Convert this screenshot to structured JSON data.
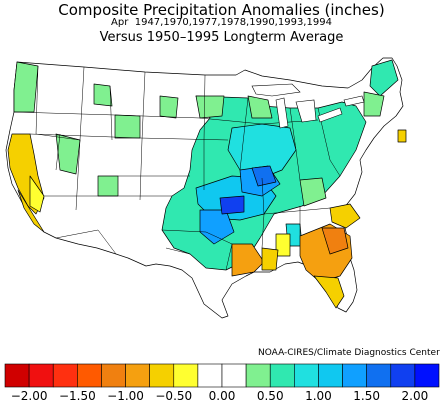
{
  "header": {
    "title": "Composite Precipitation Anomalies (inches)",
    "subtitle_month": "Apr",
    "subtitle_years": "1947,1970,1977,1978,1990,1993,1994",
    "baseline": "Versus 1950–1995 Longterm Average"
  },
  "credit": "NOAA-CIRES/Climate Diagnostics Center",
  "colors": {
    "outline": "#000000",
    "land": "#ffffff",
    "neg_200": "#d00000",
    "neg_175": "#f01010",
    "neg_150": "#ff3010",
    "neg_125": "#ff5a00",
    "neg_100": "#f08010",
    "neg_075": "#f5a010",
    "neg_050": "#f5d000",
    "neg_025": "#ffff30",
    "pos_025": "#80f090",
    "pos_050": "#30e8b0",
    "pos_075": "#20e0e0",
    "pos_100": "#10c8f0",
    "pos_125": "#10a0ff",
    "pos_150": "#1070f0",
    "pos_175": "#1040f0",
    "pos_200": "#0010ff"
  },
  "legend": {
    "tick_labels": [
      "−2.00",
      "−1.50",
      "−1.00",
      "−0.50",
      "0.00",
      "0.50",
      "1.00",
      "1.50",
      "2.00"
    ],
    "swatch_colors": [
      "#d00000",
      "#f01010",
      "#ff3010",
      "#ff5a00",
      "#f08010",
      "#f5a010",
      "#f5d000",
      "#ffff30",
      "#ffffff",
      "#ffffff",
      "#80f090",
      "#30e8b0",
      "#20e0e0",
      "#10c8f0",
      "#10a0ff",
      "#1070f0",
      "#1040f0",
      "#0010ff"
    ]
  },
  "map_data": {
    "regions": [
      {
        "name": "pacific-northwest-coast",
        "anomaly": 0.4
      },
      {
        "name": "northern-california",
        "anomaly": -0.6
      },
      {
        "name": "southern-california",
        "anomaly": -0.6
      },
      {
        "name": "upper-midwest",
        "anomaly": 0.6
      },
      {
        "name": "ohio-valley",
        "anomaly": 0.8
      },
      {
        "name": "ozarks-mid-mississippi",
        "anomaly": 1.6
      },
      {
        "name": "oklahoma-arkansas",
        "anomaly": 1.2
      },
      {
        "name": "texas-gulf",
        "anomaly": -0.9
      },
      {
        "name": "georgia-carolinas",
        "anomaly": -1.0
      },
      {
        "name": "florida",
        "anomaly": -0.6
      },
      {
        "name": "northeast",
        "anomaly": 0.5
      }
    ]
  }
}
